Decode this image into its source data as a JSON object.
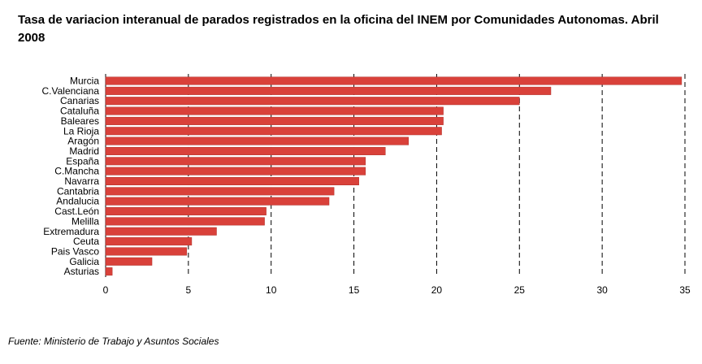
{
  "chart_data": {
    "type": "bar",
    "orientation": "horizontal",
    "title": "Tasa de variacion interanual de parados registrados en la oficina del INEM por Comunidades Autonomas. Abril 2008",
    "xlabel": "",
    "ylabel": "",
    "categories": [
      "Murcia",
      "C.Valenciana",
      "Canarias",
      "Cataluña",
      "Baleares",
      "La Rioja",
      "Aragón",
      "Madrid",
      "España",
      "C.Mancha",
      "Navarra",
      "Cantabria",
      "Andalucia",
      "Cast.León",
      "Melilla",
      "Extremadura",
      "Ceuta",
      "Pais Vasco",
      "Galicia",
      "Asturias"
    ],
    "values": [
      34.8,
      26.9,
      25.0,
      20.4,
      20.4,
      20.3,
      18.3,
      16.9,
      15.7,
      15.7,
      15.3,
      13.8,
      13.5,
      9.7,
      9.6,
      6.7,
      5.2,
      4.9,
      2.8,
      0.4
    ],
    "xlim": [
      0,
      35
    ],
    "xticks": [
      0,
      5,
      10,
      15,
      20,
      25,
      30,
      35
    ],
    "grid": "vertical dashed",
    "legend": "none",
    "bar_color": "#d9413a",
    "source": "Fuente: Ministerio de Trabajo y Asuntos Sociales"
  }
}
